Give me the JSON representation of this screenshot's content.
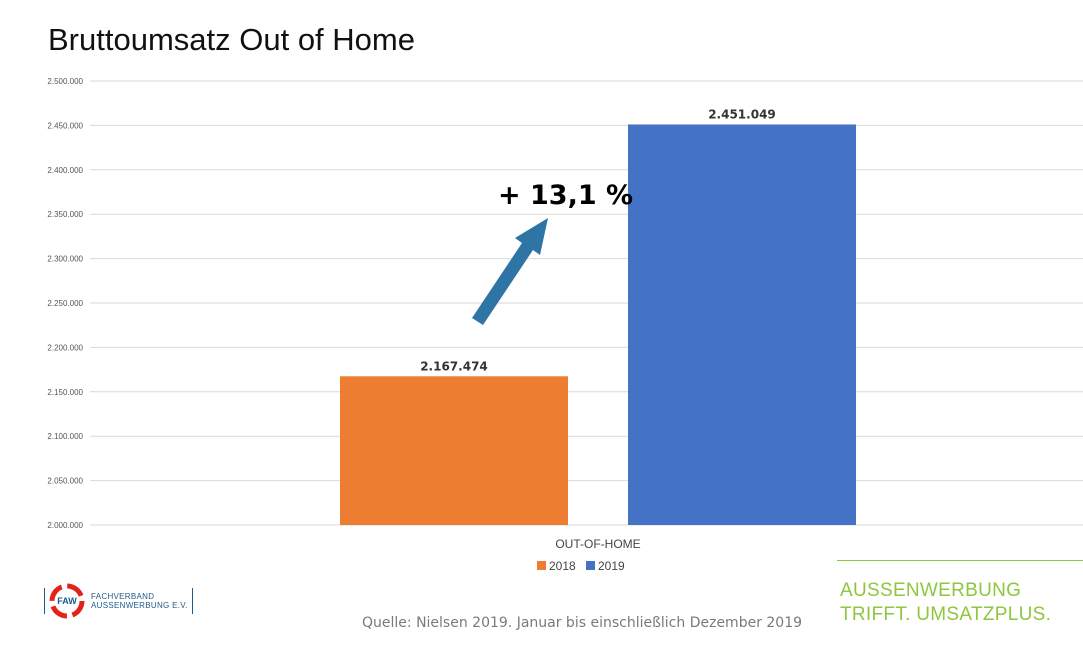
{
  "chart_data": {
    "type": "bar",
    "title": "Bruttoumsatz Out of Home",
    "categories": [
      "OUT-OF-HOME"
    ],
    "series": [
      {
        "name": "2018",
        "values": [
          2167474
        ],
        "value_label": "2.167.474",
        "color": "#ED7D31"
      },
      {
        "name": "2019",
        "values": [
          2451049
        ],
        "value_label": "2.451.049",
        "color": "#4472C4"
      }
    ],
    "ylim": [
      2000000,
      2500000
    ],
    "yticks": [
      2000000,
      2050000,
      2100000,
      2150000,
      2200000,
      2250000,
      2300000,
      2350000,
      2400000,
      2450000,
      2500000
    ],
    "ytick_labels": [
      "2.000.000",
      "2.050.000",
      "2.100.000",
      "2.150.000",
      "2.200.000",
      "2.250.000",
      "2.300.000",
      "2.350.000",
      "2.400.000",
      "2.450.000",
      "2.500.000"
    ],
    "grid": true,
    "legend": "bottom",
    "annotation": {
      "text": "+ 13,1 %",
      "arrow_color": "#2E75A6"
    }
  },
  "footer": {
    "logo": {
      "mark": "FAW",
      "line1": "FACHVERBAND",
      "line2": "AUSSENWERBUNG E.V."
    },
    "source": "Quelle: Nielsen 2019. Januar bis einschließlich Dezember 2019",
    "slogan": {
      "line1": "AUSSENWERBUNG",
      "line2": "TRIFFT. UMSATZPLUS."
    }
  }
}
